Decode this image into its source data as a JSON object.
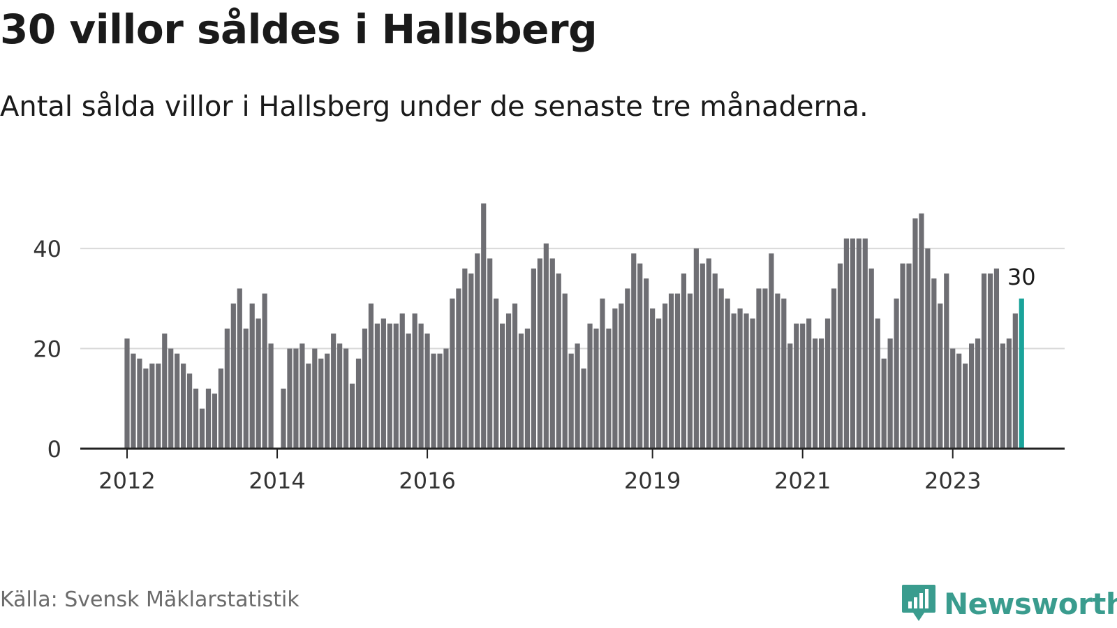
{
  "header": {
    "title": "30 villor såldes i Hallsberg",
    "subtitle": "Antal sålda villor i Hallsberg under de senaste tre månaderna."
  },
  "footer": {
    "source": "Källa: Svensk Mäklarstatistik",
    "brand": "Newsworthy",
    "brand_icon": "bar-chart-speech-bubble-icon"
  },
  "colors": {
    "bar": "#6e6e73",
    "highlight": "#1aa39a",
    "brand": "#3a9c8e",
    "grid": "#d9d9d9",
    "axis": "#222222"
  },
  "chart_data": {
    "type": "bar",
    "ylim": [
      0,
      52
    ],
    "yticks": [
      0,
      20,
      40
    ],
    "xtick_labels": [
      {
        "label": "2012",
        "index": 0
      },
      {
        "label": "2014",
        "index": 24
      },
      {
        "label": "2016",
        "index": 48
      },
      {
        "label": "2019",
        "index": 84
      },
      {
        "label": "2021",
        "index": 108
      },
      {
        "label": "2023",
        "index": 132
      }
    ],
    "highlight_label": "30",
    "values": [
      22,
      19,
      18,
      16,
      17,
      17,
      23,
      20,
      19,
      17,
      15,
      12,
      8,
      12,
      11,
      16,
      24,
      29,
      32,
      24,
      29,
      26,
      31,
      21,
      0,
      12,
      20,
      20,
      21,
      17,
      20,
      18,
      19,
      23,
      21,
      20,
      13,
      18,
      24,
      29,
      25,
      26,
      25,
      25,
      27,
      23,
      27,
      25,
      23,
      19,
      19,
      20,
      30,
      32,
      36,
      35,
      39,
      49,
      38,
      30,
      25,
      27,
      29,
      23,
      24,
      36,
      38,
      41,
      38,
      35,
      31,
      19,
      21,
      16,
      25,
      24,
      30,
      24,
      28,
      29,
      32,
      39,
      37,
      34,
      28,
      26,
      29,
      31,
      31,
      35,
      31,
      40,
      37,
      38,
      35,
      32,
      30,
      27,
      28,
      27,
      26,
      32,
      32,
      39,
      31,
      30,
      21,
      25,
      25,
      26,
      22,
      22,
      26,
      32,
      37,
      42,
      42,
      42,
      42,
      36,
      26,
      18,
      22,
      30,
      37,
      37,
      46,
      47,
      40,
      34,
      29,
      35,
      20,
      19,
      17,
      21,
      22,
      35,
      35,
      36,
      21,
      22,
      27,
      30
    ],
    "grid": true,
    "legend": "none"
  }
}
